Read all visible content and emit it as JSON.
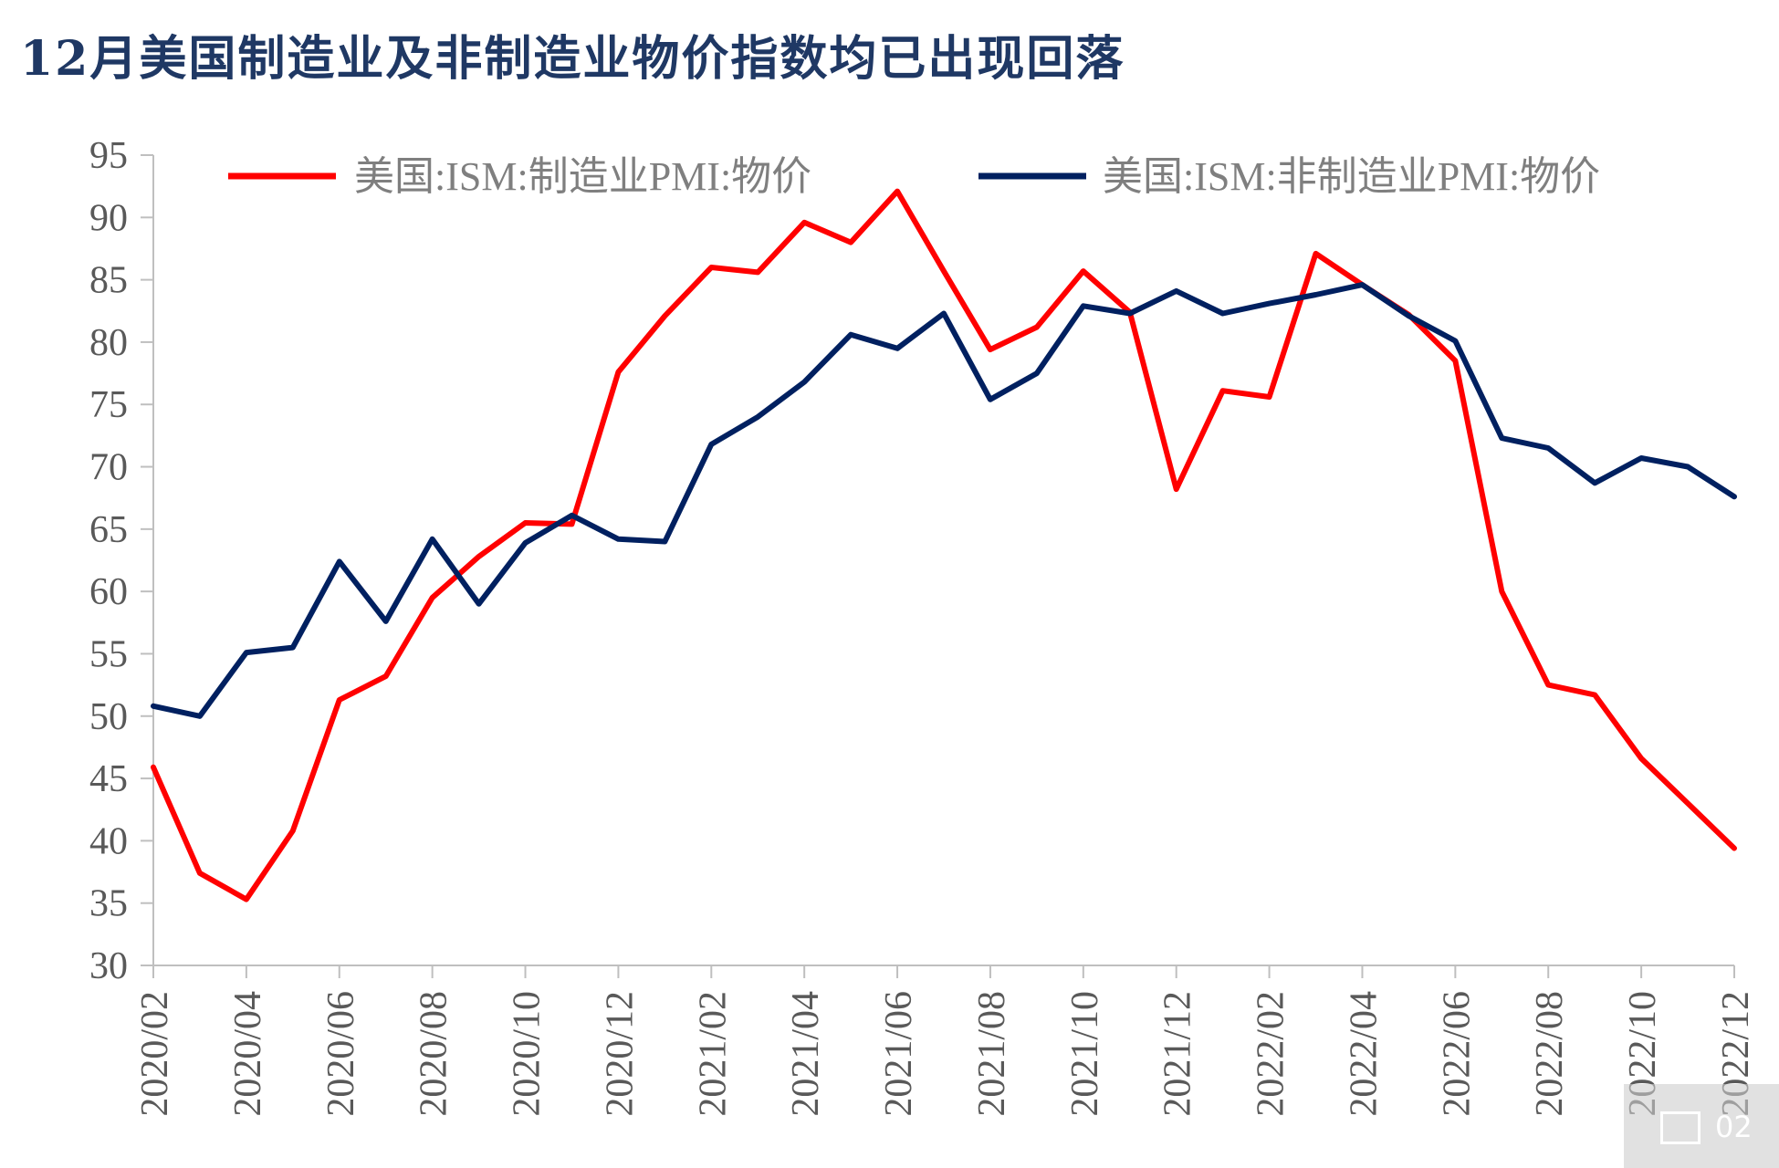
{
  "title": "12月美国制造业及非制造业物价指数均已出现回落",
  "watermark": {
    "text": "02"
  },
  "chart_data": {
    "type": "line",
    "x": [
      "2020/02",
      "2020/03",
      "2020/04",
      "2020/05",
      "2020/06",
      "2020/07",
      "2020/08",
      "2020/09",
      "2020/10",
      "2020/11",
      "2020/12",
      "2021/01",
      "2021/02",
      "2021/03",
      "2021/04",
      "2021/05",
      "2021/06",
      "2021/07",
      "2021/08",
      "2021/09",
      "2021/10",
      "2021/11",
      "2021/12",
      "2022/01",
      "2022/02",
      "2022/03",
      "2022/04",
      "2022/05",
      "2022/06",
      "2022/07",
      "2022/08",
      "2022/09",
      "2022/10",
      "2022/11",
      "2022/12"
    ],
    "xtick_labels": [
      "2020/02",
      "2020/04",
      "2020/06",
      "2020/08",
      "2020/10",
      "2020/12",
      "2021/02",
      "2021/04",
      "2021/06",
      "2021/08",
      "2021/10",
      "2021/12",
      "2022/02",
      "2022/04",
      "2022/06",
      "2022/08",
      "2022/10",
      "2022/12"
    ],
    "ylim": [
      30,
      95
    ],
    "yticks": [
      30,
      35,
      40,
      45,
      50,
      55,
      60,
      65,
      70,
      75,
      80,
      85,
      90,
      95
    ],
    "grid": false,
    "legend_position": "top",
    "series": [
      {
        "name": "美国:ISM:制造业PMI:物价",
        "color": "#ff0000",
        "values": [
          45.9,
          37.4,
          35.3,
          40.8,
          51.3,
          53.2,
          59.5,
          62.8,
          65.5,
          65.4,
          77.6,
          82.1,
          86.0,
          85.6,
          89.6,
          88.0,
          92.1,
          85.7,
          79.4,
          81.2,
          85.7,
          82.4,
          68.2,
          76.1,
          75.6,
          87.1,
          84.6,
          82.2,
          78.5,
          60.0,
          52.5,
          51.7,
          46.6,
          43.0,
          39.4
        ]
      },
      {
        "name": "美国:ISM:非制造业PMI:物价",
        "color": "#002060",
        "values": [
          50.8,
          50.0,
          55.1,
          55.5,
          62.4,
          57.6,
          64.2,
          59.0,
          63.9,
          66.1,
          64.2,
          64.0,
          71.8,
          74.0,
          76.8,
          80.6,
          79.5,
          82.3,
          75.4,
          77.5,
          82.9,
          82.3,
          84.1,
          82.3,
          83.1,
          83.8,
          84.6,
          82.1,
          80.1,
          72.3,
          71.5,
          68.7,
          70.7,
          70.0,
          67.6
        ]
      }
    ]
  }
}
